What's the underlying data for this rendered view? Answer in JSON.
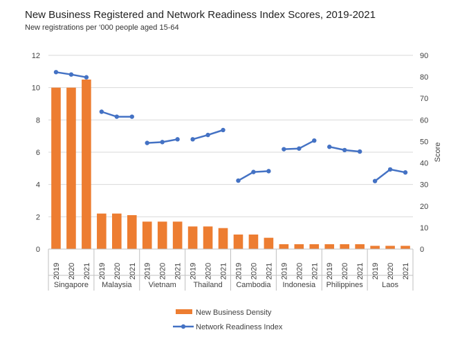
{
  "chart_data": {
    "type": "bar",
    "title": "New Business Registered and Network Readiness Index Scores, 2019-2021",
    "subtitle": "New registrations per ‘000 people aged 15-64",
    "groups": [
      "Singapore",
      "Malaysia",
      "Vietnam",
      "Thailand",
      "Cambodia",
      "Indonesia",
      "Philippines",
      "Laos"
    ],
    "years": [
      "2019",
      "2020",
      "2021"
    ],
    "y_left": {
      "min": 0,
      "max": 12,
      "ticks": [
        0,
        2,
        4,
        6,
        8,
        10,
        12
      ],
      "label": ""
    },
    "y_right": {
      "min": 0,
      "max": 90,
      "ticks": [
        0,
        10,
        20,
        30,
        40,
        50,
        60,
        70,
        80,
        90
      ],
      "label": "Score"
    },
    "grid": true,
    "legend_position": "bottom",
    "series": [
      {
        "name": "New Business Density",
        "type": "bar",
        "axis": "left",
        "color": "#ED7D31",
        "values": [
          10.0,
          10.0,
          10.5,
          2.2,
          2.2,
          2.1,
          1.7,
          1.7,
          1.7,
          1.4,
          1.4,
          1.3,
          0.9,
          0.9,
          0.7,
          0.3,
          0.3,
          0.3,
          0.3,
          0.3,
          0.3,
          0.2,
          0.2,
          0.2
        ]
      },
      {
        "name": "Network Readiness Index",
        "type": "line",
        "axis": "right",
        "color": "#4472C4",
        "values": [
          82.2,
          81.1,
          79.8,
          63.8,
          61.5,
          61.5,
          49.3,
          49.7,
          51.0,
          51.0,
          53.0,
          55.3,
          31.8,
          35.8,
          36.2,
          46.4,
          46.7,
          50.4,
          47.5,
          46.0,
          45.3,
          31.6,
          37.0,
          35.6
        ]
      }
    ]
  }
}
